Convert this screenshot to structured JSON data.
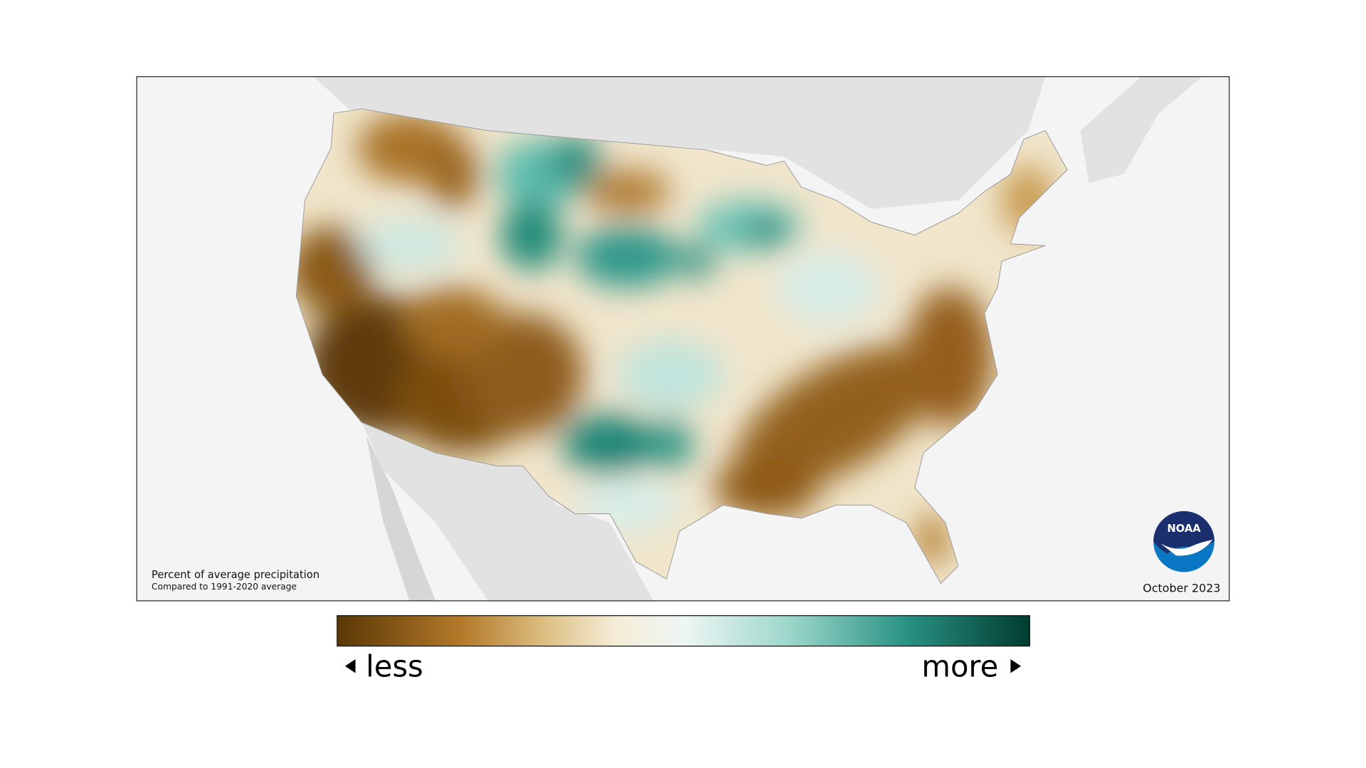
{
  "map": {
    "caption": {
      "title": "Percent of average precipitation",
      "subtitle": "Compared to 1991-2020 average"
    },
    "date": "October 2023",
    "logo": "NOAA"
  },
  "legend": {
    "less": "less",
    "more": "more"
  }
}
